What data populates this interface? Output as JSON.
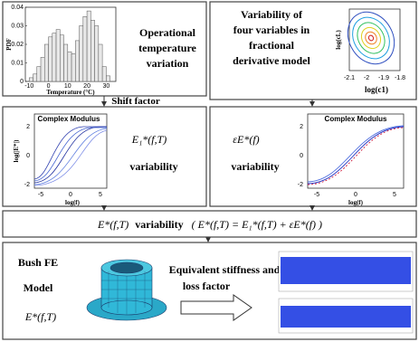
{
  "temperature_panel": {
    "heading": [
      "Operational",
      "temperature",
      "variation"
    ],
    "chart_data": {
      "type": "histogram",
      "ylabel": "PDF",
      "xlabel": "Temperature (°C)",
      "bins": [
        -10,
        -8,
        -6,
        -4,
        -2,
        0,
        2,
        4,
        6,
        8,
        10,
        12,
        14,
        16,
        18,
        20,
        22,
        24,
        26,
        28,
        30,
        32
      ],
      "values": [
        0.002,
        0.004,
        0.008,
        0.013,
        0.02,
        0.024,
        0.026,
        0.028,
        0.025,
        0.02,
        0.016,
        0.015,
        0.022,
        0.03,
        0.035,
        0.038,
        0.033,
        0.03,
        0.02,
        0.008,
        0.003
      ],
      "color": "#e8e8e8",
      "xlim": [
        -12,
        35
      ],
      "xticks": [
        -10,
        0,
        10,
        20,
        30
      ],
      "ylim": [
        0,
        0.04
      ],
      "yticks": [
        0,
        0.01,
        0.02,
        0.03,
        0.04
      ]
    }
  },
  "variables_panel": {
    "heading": [
      "Variability of",
      "four variables in",
      "fractional",
      "derivative model"
    ],
    "ylabel": "log(cL)",
    "xlabel": "log(c1)",
    "xticks": [
      "-2.1",
      "-2",
      "-1.9",
      "-1.8"
    ]
  },
  "shift_factor": "Shift factor",
  "modulus_left": {
    "title": "Complex Modulus",
    "ylabel": "log(|E*|)",
    "xlabel": "log(f)",
    "yticks": [
      "2",
      "0",
      "-2"
    ],
    "xticks": [
      "-5",
      "0",
      "5"
    ],
    "symbol": "E₁*(f,T)",
    "caption": "variability"
  },
  "modulus_right": {
    "title": "Complex Modulus",
    "yticks": [
      "2",
      "0",
      "-2"
    ],
    "xticks": [
      "-5",
      "0",
      "5"
    ],
    "xlabel": "log(f)",
    "symbol": "εE*(f)",
    "caption": "variability"
  },
  "formula": {
    "lhs": "E*(f,T)",
    "word": "variability",
    "rhs": "( E*(f,T) = E₁*(f,T) + εE*(f) )"
  },
  "bottom_panel": {
    "heading": [
      "Bush FE",
      "Model"
    ],
    "symbol": "E*(f,T)",
    "result": [
      "Equivalent stiffness and",
      "loss factor"
    ]
  }
}
